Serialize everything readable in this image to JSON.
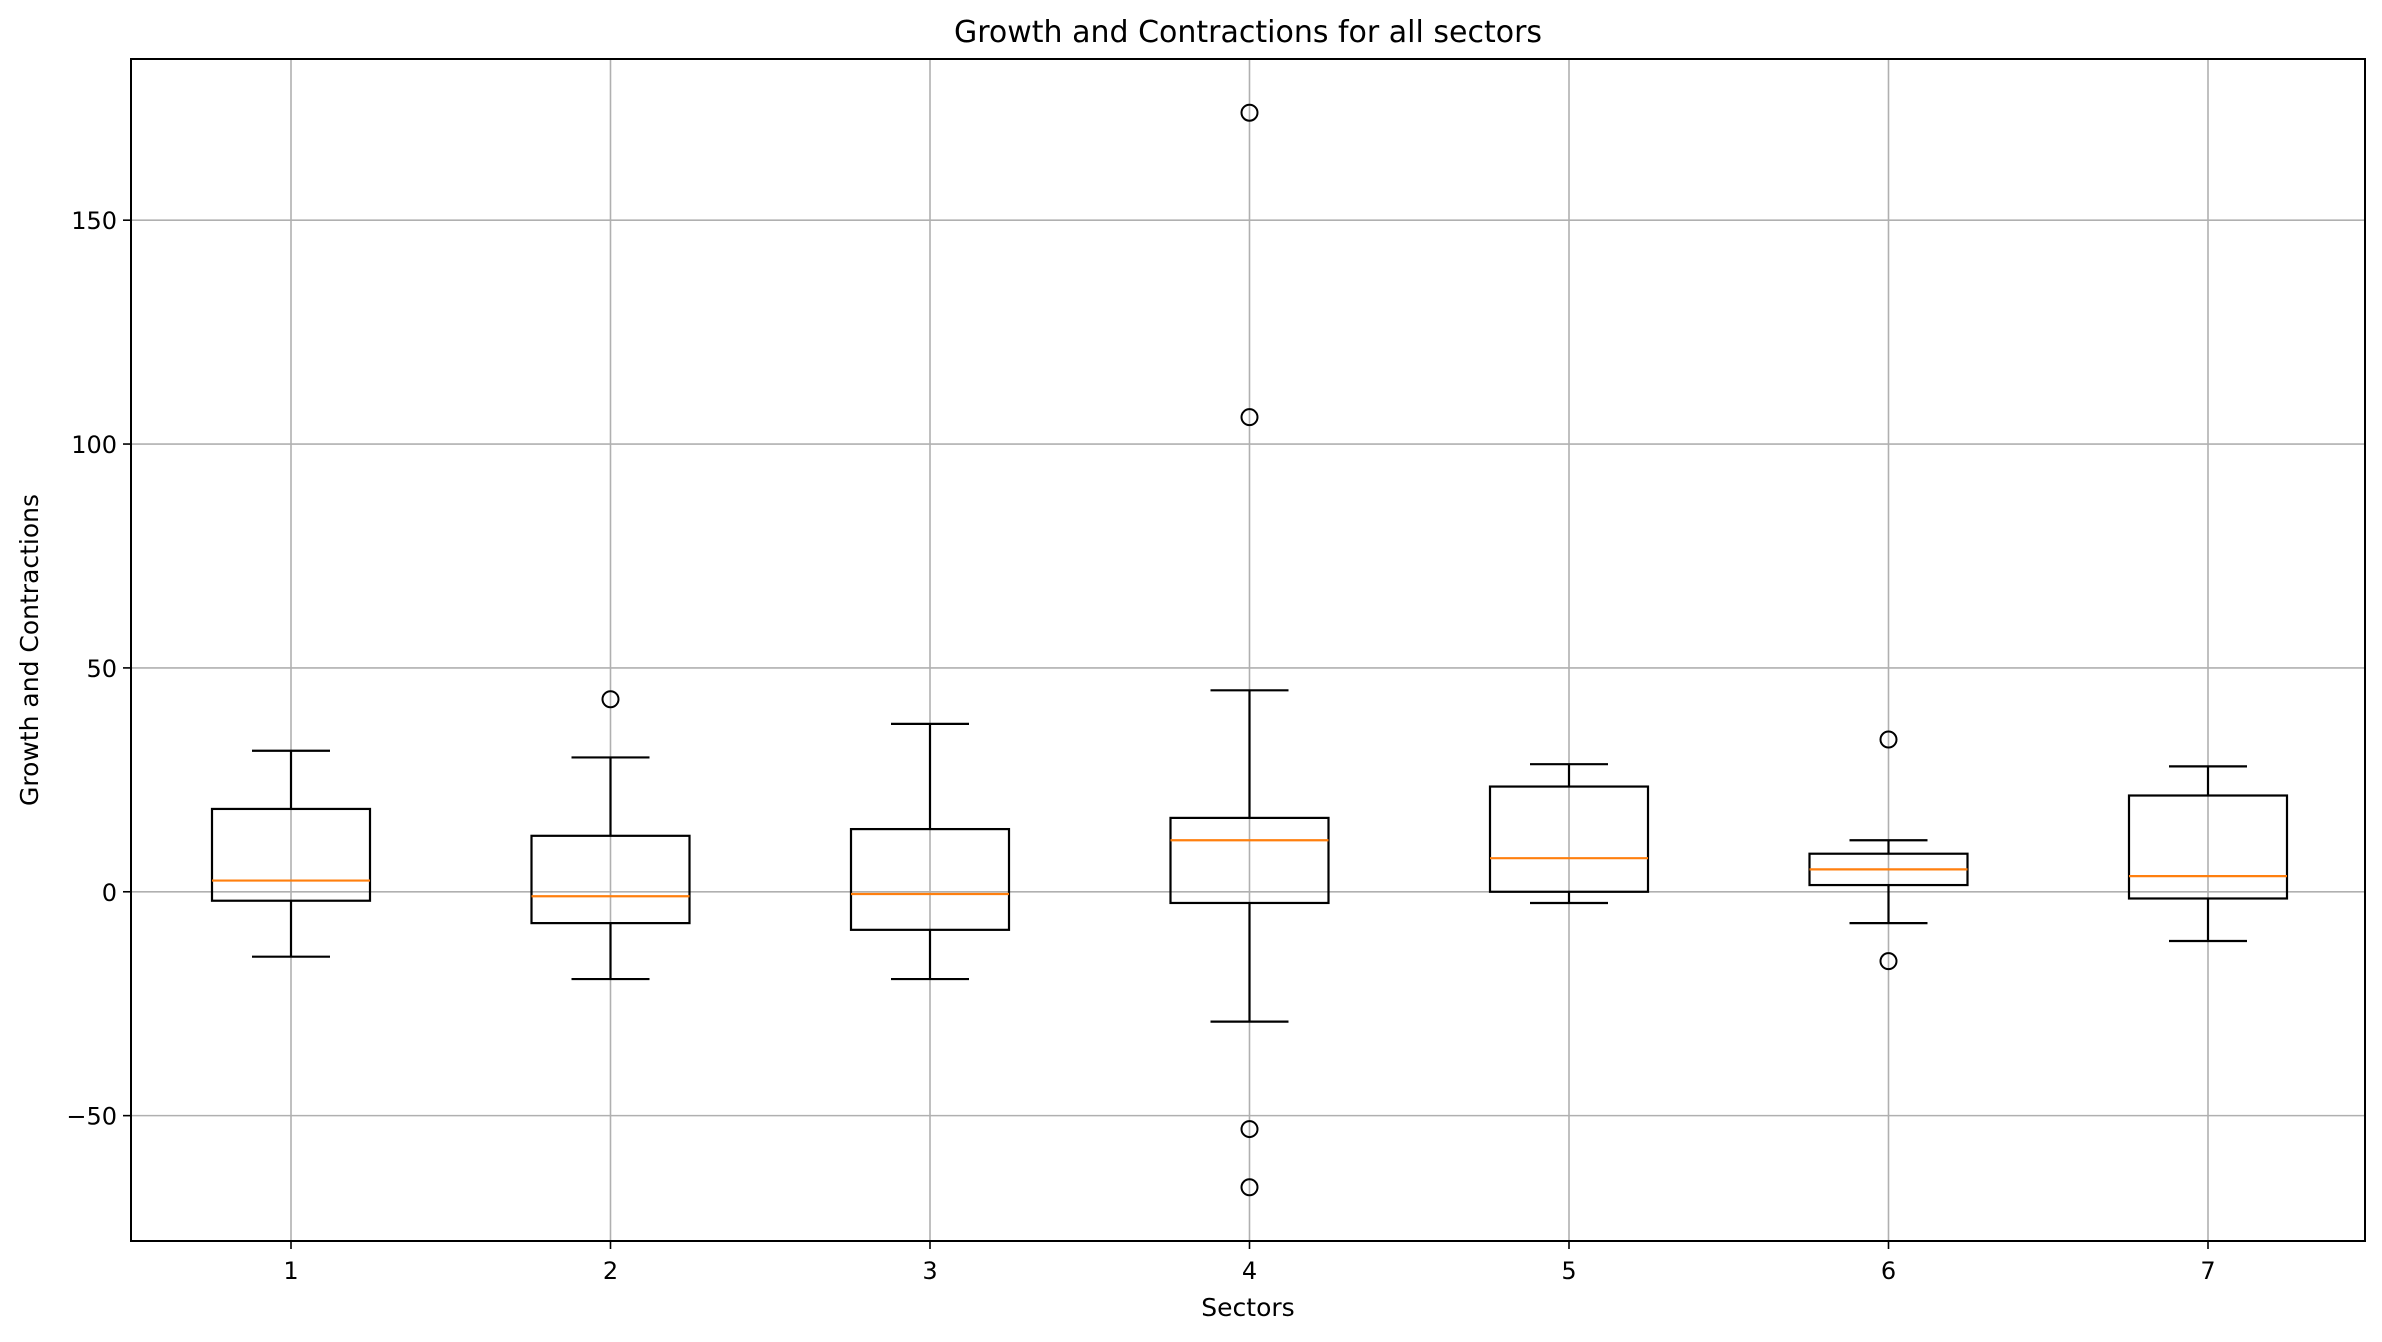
{
  "chart_data": {
    "type": "boxplot",
    "title": "Growth and Contractions for all sectors",
    "xlabel": "Sectors",
    "ylabel": "Growth and Contractions",
    "x_ticks": [
      "1",
      "2",
      "3",
      "4",
      "5",
      "6",
      "7"
    ],
    "y_ticks": [
      -50,
      0,
      50,
      100,
      150
    ],
    "y_tick_labels": [
      "−50",
      "0",
      "50",
      "100",
      "150"
    ],
    "ylim": [
      -78,
      186
    ],
    "grid": true,
    "colors": {
      "box": "#000000",
      "median": "#ff7f0e",
      "grid": "#b0b0b0"
    },
    "boxes": [
      {
        "label": "1",
        "q1": -2,
        "median": 2.5,
        "q3": 18.5,
        "whisker_low": -14.5,
        "whisker_high": 31.5,
        "outliers": []
      },
      {
        "label": "2",
        "q1": -7,
        "median": -1,
        "q3": 12.5,
        "whisker_low": -19.5,
        "whisker_high": 30,
        "outliers": [
          43
        ]
      },
      {
        "label": "3",
        "q1": -8.5,
        "median": -0.5,
        "q3": 14,
        "whisker_low": -19.5,
        "whisker_high": 37.5,
        "outliers": []
      },
      {
        "label": "4",
        "q1": -2.5,
        "median": 11.5,
        "q3": 16.5,
        "whisker_low": -29,
        "whisker_high": 45,
        "outliers": [
          174,
          106,
          -53,
          -66
        ]
      },
      {
        "label": "5",
        "q1": 0,
        "median": 7.5,
        "q3": 23.5,
        "whisker_low": -2.5,
        "whisker_high": 28.5,
        "outliers": []
      },
      {
        "label": "6",
        "q1": 1.5,
        "median": 5,
        "q3": 8.5,
        "whisker_low": -7,
        "whisker_high": 11.5,
        "outliers": [
          34,
          -15.5
        ]
      },
      {
        "label": "7",
        "q1": -1.5,
        "median": 3.5,
        "q3": 21.5,
        "whisker_low": -11,
        "whisker_high": 28,
        "outliers": []
      }
    ]
  }
}
